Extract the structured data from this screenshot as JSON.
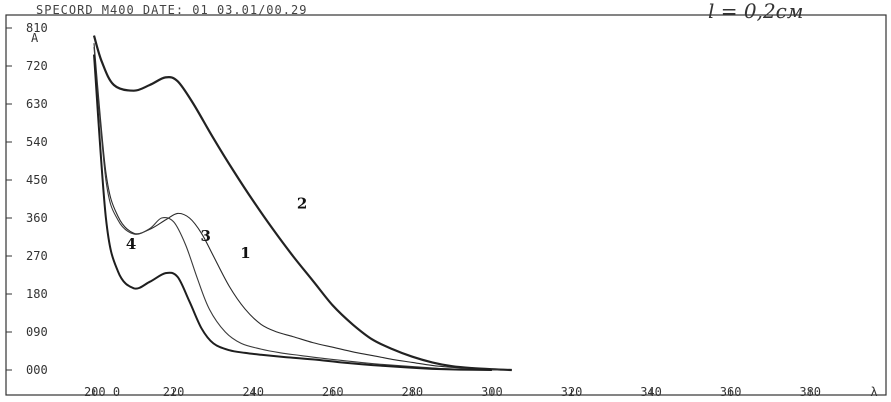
{
  "header": {
    "instrument_date": "SPECORD M400 DATE: 01 03.01/00.29",
    "path_note": "l = 0,2см"
  },
  "chart_data": {
    "type": "line",
    "title": "",
    "xlabel": "λ",
    "ylabel": "A",
    "xlim": [
      200,
      390
    ],
    "ylim": [
      0,
      900
    ],
    "x_tick_labels": [
      "200 0",
      "220",
      "240",
      "260",
      "280",
      "300",
      "320",
      "340",
      "360",
      "380",
      "λ"
    ],
    "y_tick_labels": [
      "000",
      "090",
      "180",
      "270",
      "360",
      "450",
      "540",
      "630",
      "720",
      "810",
      "A"
    ],
    "grid": false,
    "series": [
      {
        "name": "1",
        "x": [
          200,
          203,
          206,
          210,
          214,
          218,
          221,
          224,
          227,
          230,
          234,
          238,
          242,
          246,
          250,
          255,
          260,
          265,
          270,
          275,
          280,
          285,
          290,
          295,
          300,
          305
        ],
        "values": [
          860,
          520,
          405,
          360,
          370,
          395,
          412,
          400,
          360,
          300,
          220,
          160,
          120,
          100,
          88,
          72,
          60,
          48,
          38,
          28,
          20,
          12,
          7,
          4,
          2,
          0
        ],
        "color": "#2a2a2a"
      },
      {
        "name": "2",
        "x": [
          200,
          202,
          205,
          210,
          214,
          218,
          221,
          225,
          230,
          235,
          240,
          245,
          250,
          255,
          260,
          265,
          270,
          275,
          280,
          285,
          290,
          295,
          300,
          305
        ],
        "values": [
          880,
          810,
          750,
          735,
          750,
          770,
          760,
          700,
          610,
          525,
          445,
          370,
          300,
          235,
          170,
          120,
          80,
          55,
          35,
          20,
          10,
          5,
          2,
          0
        ],
        "color": "#222222"
      },
      {
        "name": "3",
        "x": [
          200,
          203,
          206,
          210,
          214,
          217,
          220,
          223,
          226,
          229,
          233,
          237,
          242,
          247,
          252,
          258,
          265,
          272,
          280,
          287,
          295,
          302
        ],
        "values": [
          850,
          500,
          395,
          358,
          372,
          400,
          390,
          330,
          240,
          160,
          100,
          70,
          55,
          45,
          38,
          30,
          22,
          15,
          9,
          4,
          1,
          0
        ],
        "color": "#3a3a3a"
      },
      {
        "name": "4",
        "x": [
          200,
          203,
          206,
          210,
          214,
          218,
          221,
          224,
          227,
          230,
          234,
          238,
          242,
          248,
          255,
          262,
          270,
          278,
          285,
          292,
          300
        ],
        "values": [
          830,
          400,
          260,
          215,
          232,
          255,
          245,
          180,
          110,
          70,
          52,
          45,
          40,
          34,
          28,
          20,
          13,
          7,
          3,
          1,
          0
        ],
        "color": "#1e1e1e"
      }
    ]
  }
}
